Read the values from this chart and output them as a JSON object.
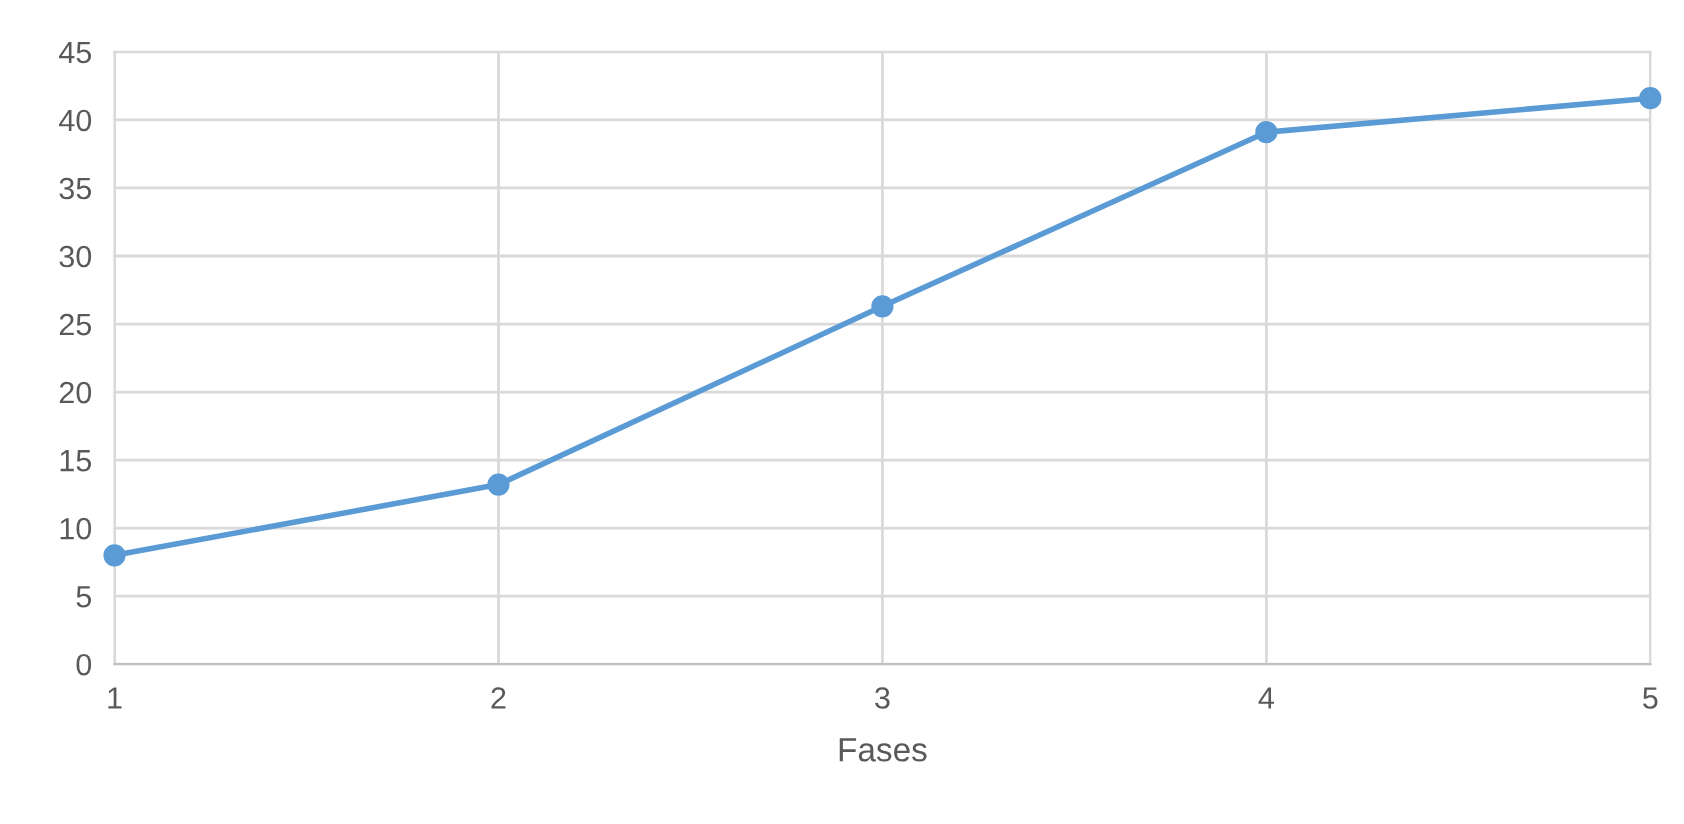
{
  "chart_data": {
    "type": "line",
    "xlabel": "Fases",
    "x": [
      1,
      2,
      3,
      4,
      5
    ],
    "series": [
      {
        "color": "#5b9bd5",
        "values": [
          8,
          13.2,
          26.3,
          39.1,
          41.6
        ]
      }
    ],
    "xlim": [
      1,
      5
    ],
    "xticks": [
      1,
      2,
      3,
      4,
      5
    ],
    "ylim": [
      0,
      45
    ],
    "yticks": [
      0,
      5,
      10,
      15,
      20,
      25,
      30,
      35,
      40,
      45
    ],
    "grid": true,
    "marker": "circle",
    "line_style": "solid"
  }
}
